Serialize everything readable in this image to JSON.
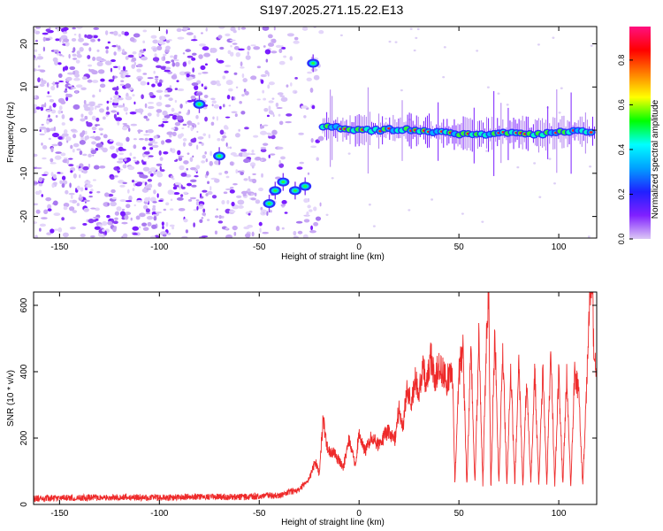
{
  "title": "S197.2025.271.15.22.E13",
  "chart_data": [
    {
      "type": "heatmap",
      "xlabel": "Height of straight line (km)",
      "ylabel": "Frequency (Hz)",
      "xlim": [
        -163,
        119
      ],
      "ylim": [
        -25,
        24
      ],
      "xticks": [
        -150,
        -100,
        -50,
        0,
        50,
        100
      ],
      "yticks": [
        -20,
        -10,
        0,
        10,
        20
      ],
      "colorbar": {
        "label": "Normalized spectral amplitude",
        "range": [
          0,
          0.95
        ],
        "ticks": [
          0.0,
          0.2,
          0.4,
          0.6,
          0.8
        ],
        "colormap": [
          "#ffffff",
          "#dcc8f5",
          "#8020ff",
          "#2020ff",
          "#00a0ff",
          "#00ffff",
          "#00ff00",
          "#ffff00",
          "#ff8000",
          "#ff0000",
          "#ff1080"
        ]
      },
      "trace": {
        "points": [
          [
            -80,
            6.0
          ],
          [
            -70,
            -6.0
          ],
          [
            -45,
            -17.0
          ],
          [
            -42,
            -14.0
          ],
          [
            -38,
            -12.0
          ],
          [
            -32,
            -14.0
          ],
          [
            -27,
            -13.0
          ],
          [
            -23,
            15.5
          ],
          [
            -18,
            1.0
          ],
          [
            -10,
            0.5
          ],
          [
            0,
            0.0
          ],
          [
            10,
            0.0
          ],
          [
            20,
            0.2
          ],
          [
            30,
            0.0
          ],
          [
            40,
            -0.5
          ],
          [
            50,
            -1.0
          ],
          [
            60,
            -1.0
          ],
          [
            70,
            -0.8
          ],
          [
            80,
            -0.5
          ],
          [
            90,
            -1.0
          ],
          [
            100,
            -0.5
          ],
          [
            110,
            -0.3
          ],
          [
            117,
            -0.5
          ]
        ]
      }
    },
    {
      "type": "line",
      "xlabel": "Height of straight line (km)",
      "ylabel": "SNR (10 * v/v)",
      "xlim": [
        -163,
        119
      ],
      "ylim": [
        0,
        640
      ],
      "xticks": [
        -150,
        -100,
        -50,
        0,
        50,
        100
      ],
      "yticks": [
        0,
        200,
        400,
        600
      ],
      "series": [
        {
          "color": "#ee2a2a",
          "x": [
            -163,
            -140,
            -120,
            -100,
            -80,
            -60,
            -40,
            -30,
            -25,
            -22,
            -20,
            -18,
            -16,
            -12,
            -8,
            -5,
            -2,
            0,
            3,
            6,
            10,
            14,
            18,
            20,
            22,
            24,
            26,
            28,
            30,
            32,
            34,
            36,
            38,
            40,
            42,
            44,
            46,
            47,
            48,
            50,
            52,
            54,
            56,
            58,
            60,
            62,
            64,
            65,
            66,
            68,
            70,
            72,
            74,
            76,
            78,
            80,
            82,
            84,
            86,
            88,
            90,
            92,
            94,
            96,
            98,
            100,
            102,
            104,
            106,
            108,
            110,
            112,
            114,
            115,
            116,
            117,
            118,
            119
          ],
          "y": [
            18,
            20,
            22,
            20,
            24,
            22,
            28,
            45,
            75,
            130,
            95,
            255,
            170,
            150,
            110,
            195,
            120,
            215,
            160,
            205,
            175,
            220,
            195,
            295,
            230,
            345,
            300,
            380,
            330,
            410,
            360,
            445,
            380,
            420,
            395,
            370,
            410,
            350,
            60,
            395,
            470,
            50,
            480,
            60,
            505,
            60,
            560,
            620,
            45,
            520,
            60,
            460,
            60,
            410,
            60,
            435,
            55,
            380,
            60,
            395,
            55,
            400,
            60,
            450,
            60,
            395,
            60,
            380,
            55,
            395,
            340,
            60,
            350,
            560,
            630,
            590,
            420,
            390
          ]
        }
      ]
    }
  ]
}
